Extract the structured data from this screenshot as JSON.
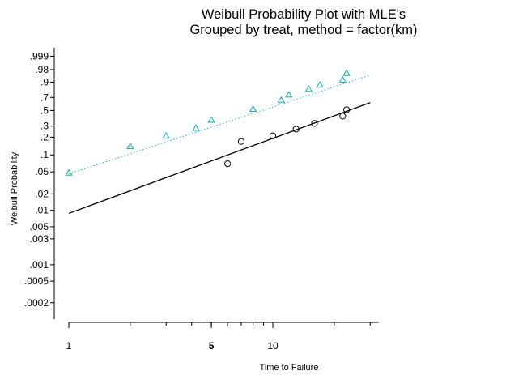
{
  "chart_data": {
    "type": "scatter",
    "title": "Weibull Probability Plot with MLE's",
    "subtitle": "Grouped by treat, method = factor(km)",
    "xlabel": "Time to Failure",
    "ylabel": "Weibull Probability",
    "x_scale": "log",
    "y_scale": "weibull",
    "xlim": [
      0.92,
      33
    ],
    "ylim": [
      0.0001,
      0.9999
    ],
    "x_ticks": [
      {
        "value": 1,
        "label": "1",
        "bold": false
      },
      {
        "value": 5,
        "label": "5",
        "bold": true
      },
      {
        "value": 10,
        "label": "10",
        "bold": false
      }
    ],
    "y_ticks": [
      {
        "value": 0.999,
        "label": ".999"
      },
      {
        "value": 0.98,
        "label": ".98"
      },
      {
        "value": 0.9,
        "label": ".9"
      },
      {
        "value": 0.7,
        "label": ".7"
      },
      {
        "value": 0.5,
        "label": ".5"
      },
      {
        "value": 0.3,
        "label": ".3"
      },
      {
        "value": 0.2,
        "label": ".2"
      },
      {
        "value": 0.1,
        "label": ".1"
      },
      {
        "value": 0.05,
        "label": ".05"
      },
      {
        "value": 0.02,
        "label": ".02"
      },
      {
        "value": 0.01,
        "label": ".01"
      },
      {
        "value": 0.005,
        "label": ".005"
      },
      {
        "value": 0.003,
        "label": ".003"
      },
      {
        "value": 0.001,
        "label": ".001"
      },
      {
        "value": 0.0005,
        "label": ".0005"
      },
      {
        "value": 0.0002,
        "label": ".0002"
      }
    ],
    "grid": false,
    "legend": "none",
    "series": [
      {
        "marker": "triangle",
        "color": "#1fb5b5",
        "line_style": "dotted",
        "points": [
          {
            "x": 1.0,
            "y": 0.048
          },
          {
            "x": 2.0,
            "y": 0.14
          },
          {
            "x": 3.0,
            "y": 0.21
          },
          {
            "x": 4.2,
            "y": 0.28
          },
          {
            "x": 5.0,
            "y": 0.37
          },
          {
            "x": 8.0,
            "y": 0.52
          },
          {
            "x": 11.0,
            "y": 0.66
          },
          {
            "x": 12.0,
            "y": 0.74
          },
          {
            "x": 15.0,
            "y": 0.82
          },
          {
            "x": 17.0,
            "y": 0.87
          },
          {
            "x": 22.0,
            "y": 0.92
          },
          {
            "x": 23.0,
            "y": 0.965
          }
        ],
        "fit": {
          "x": [
            1.0,
            30.0
          ],
          "y": [
            0.046,
            0.955
          ]
        }
      },
      {
        "marker": "circle",
        "color": "#000000",
        "line_style": "solid",
        "points": [
          {
            "x": 6.0,
            "y": 0.07
          },
          {
            "x": 7.0,
            "y": 0.17
          },
          {
            "x": 10.0,
            "y": 0.21
          },
          {
            "x": 13.0,
            "y": 0.27
          },
          {
            "x": 16.0,
            "y": 0.33
          },
          {
            "x": 22.0,
            "y": 0.42
          },
          {
            "x": 23.0,
            "y": 0.51
          }
        ],
        "fit": {
          "x": [
            1.0,
            30.0
          ],
          "y": [
            0.0088,
            0.62
          ]
        }
      }
    ]
  }
}
